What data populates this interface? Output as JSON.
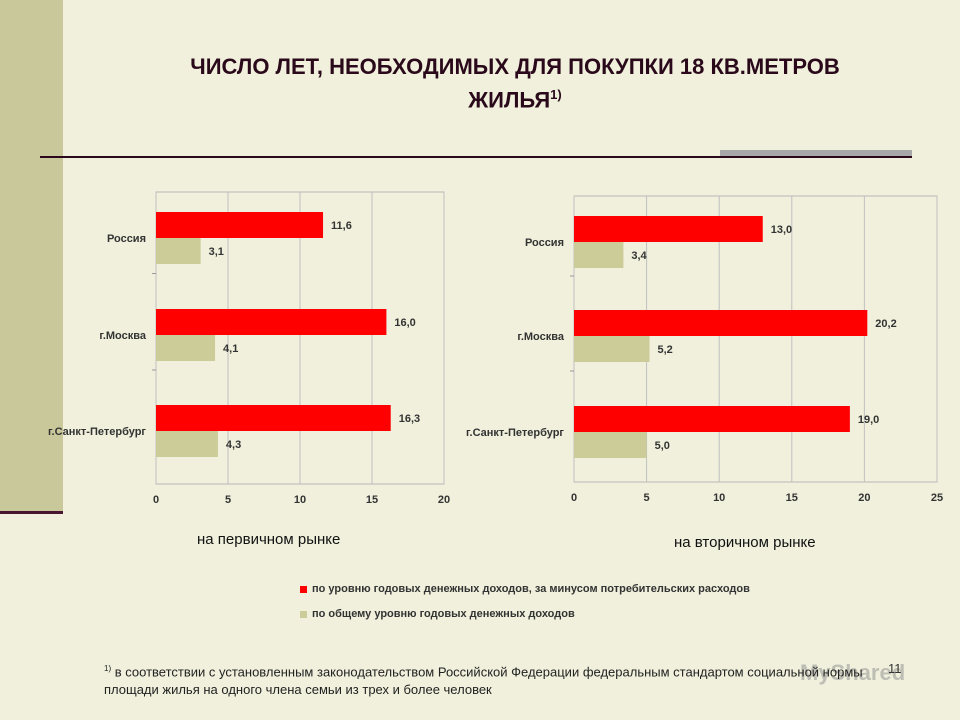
{
  "title": {
    "text": "ЧИСЛО ЛЕТ, НЕОБХОДИМЫХ ДЛЯ ПОКУПКИ 18 КВ.МЕТРОВ",
    "line2": "ЖИЛЬЯ",
    "superscript": "1)"
  },
  "colors": {
    "series_red": "#ff0000",
    "series_khaki": "#cccc99",
    "accent": "#4a1530",
    "sidebar": "#c9c89b"
  },
  "chart_data": [
    {
      "type": "bar",
      "orientation": "horizontal",
      "caption": "на первичном рынке",
      "categories": [
        "Россия",
        "г.Москва",
        "г.Санкт-Петербург"
      ],
      "series": [
        {
          "name": "по уровню годовых денежных доходов, за минусом потребительских расходов",
          "values": [
            11.6,
            16.0,
            16.3
          ],
          "labels": [
            "11,6",
            "16,0",
            "16,3"
          ]
        },
        {
          "name": "по общему уровню годовых денежных доходов",
          "values": [
            3.1,
            4.1,
            4.3
          ],
          "labels": [
            "3,1",
            "4,1",
            "4,3"
          ]
        }
      ],
      "xlim": [
        0,
        20
      ],
      "xticks": [
        0,
        5,
        10,
        15,
        20
      ],
      "grid": true
    },
    {
      "type": "bar",
      "orientation": "horizontal",
      "caption": "на вторичном рынке",
      "categories": [
        "Россия",
        "г.Москва",
        "г.Санкт-Петербург"
      ],
      "series": [
        {
          "name": "по уровню годовых денежных доходов, за минусом потребительских расходов",
          "values": [
            13.0,
            20.2,
            19.0
          ],
          "labels": [
            "13,0",
            "20,2",
            "19,0"
          ]
        },
        {
          "name": "по общему уровню годовых денежных доходов",
          "values": [
            3.4,
            5.2,
            5.0
          ],
          "labels": [
            "3,4",
            "5,2",
            "5,0"
          ]
        }
      ],
      "xlim": [
        0,
        25
      ],
      "xticks": [
        0,
        5,
        10,
        15,
        20,
        25
      ],
      "grid": true
    }
  ],
  "legend": {
    "placement": "bottom",
    "items": [
      {
        "label": "по уровню годовых денежных доходов, за минусом потребительских расходов"
      },
      {
        "label": "по общему уровню годовых денежных доходов"
      }
    ]
  },
  "footnote": {
    "marker": "1)",
    "text": " в соответствии с установленным законодательством Российской Федерации федеральным стандартом социальной нормы площади жилья на одного члена семьи из трех и более человек"
  },
  "page_number": "11",
  "watermark": "MyShared"
}
